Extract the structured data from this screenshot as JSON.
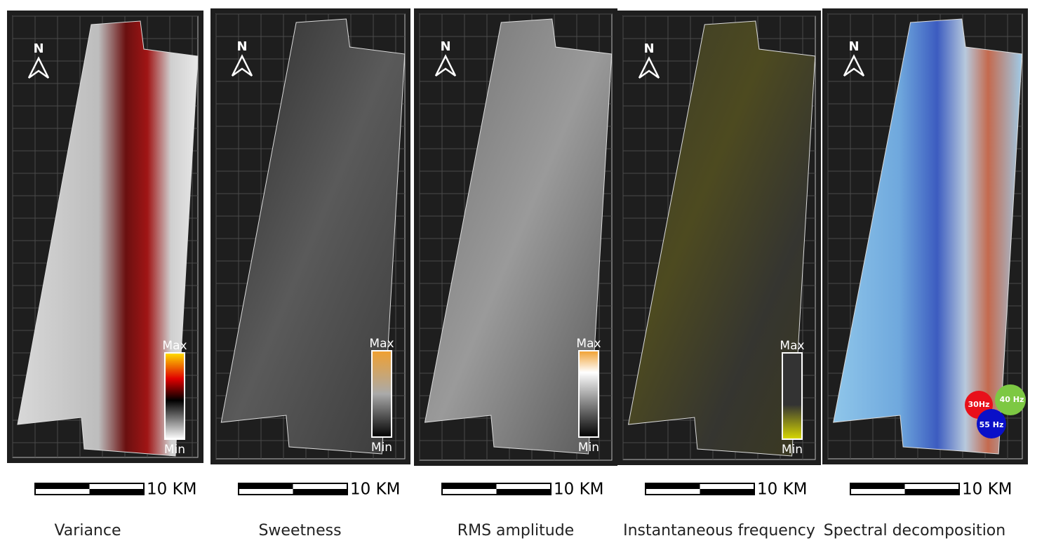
{
  "panels": [
    {
      "north": "N",
      "legend": {
        "max": "Max",
        "min": "Min"
      },
      "scale": "10 KM",
      "caption": "Variance"
    },
    {
      "north": "N",
      "legend": {
        "max": "Max",
        "min": "Min"
      },
      "scale": "10 KM",
      "caption": "Sweetness"
    },
    {
      "north": "N",
      "legend": {
        "max": "Max",
        "min": "Min"
      },
      "scale": "10 KM",
      "caption": "RMS amplitude"
    },
    {
      "north": "N",
      "legend": {
        "max": "Max",
        "min": "Min"
      },
      "scale": "10 KM",
      "caption": "Instantaneous frequency"
    },
    {
      "north": "N",
      "legend": {
        "circles": [
          "30Hz",
          "40 Hz",
          "55 Hz"
        ]
      },
      "scale": "10 KM",
      "caption": "Spectral decomposition"
    }
  ]
}
